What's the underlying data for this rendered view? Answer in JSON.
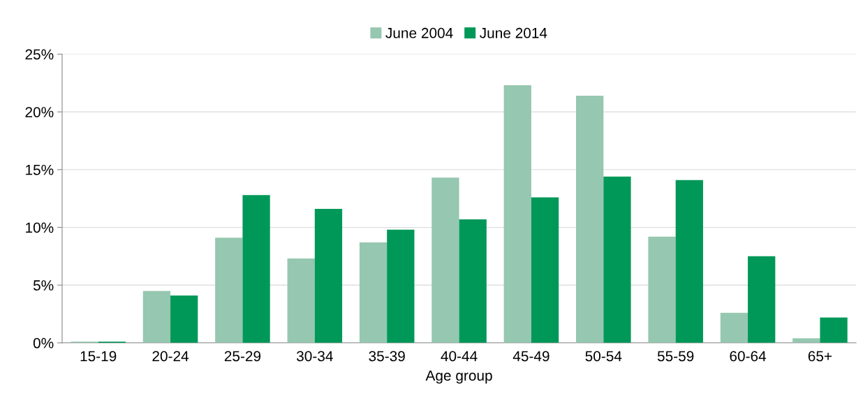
{
  "chart_data": {
    "type": "bar",
    "xlabel": "Age group",
    "categories": [
      "15-19",
      "20-24",
      "25-29",
      "30-34",
      "35-39",
      "40-44",
      "45-49",
      "50-54",
      "55-59",
      "60-64",
      "65+"
    ],
    "series": [
      {
        "name": "June 2004",
        "color": "#96c7b0",
        "values": [
          0.1,
          4.5,
          9.1,
          7.3,
          8.7,
          14.3,
          22.3,
          21.4,
          9.2,
          2.6,
          0.4
        ]
      },
      {
        "name": "June 2014",
        "color": "#009858",
        "values": [
          0.1,
          4.1,
          12.8,
          11.6,
          9.8,
          10.7,
          12.6,
          14.4,
          14.1,
          7.5,
          2.2
        ]
      }
    ],
    "ylim": [
      0,
      25
    ],
    "yticks": [
      {
        "value": 0,
        "label": "0%"
      },
      {
        "value": 5,
        "label": "5%"
      },
      {
        "value": 10,
        "label": "10%"
      },
      {
        "value": 15,
        "label": "15%"
      },
      {
        "value": 20,
        "label": "20%"
      },
      {
        "value": 25,
        "label": "25%"
      }
    ],
    "grid": "y",
    "legend": "top"
  }
}
